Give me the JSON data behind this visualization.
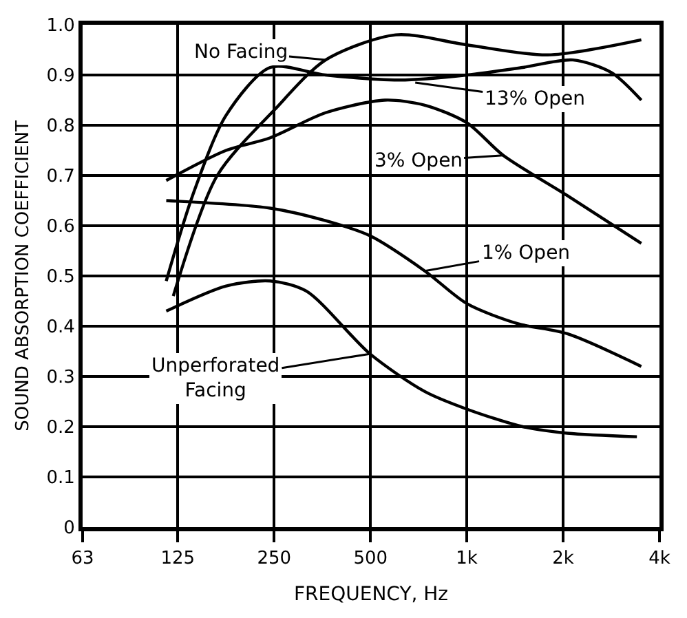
{
  "chart_data": {
    "type": "line",
    "xlabel": "FREQUENCY, Hz",
    "ylabel": "SOUND ABSORPTION COEFFICIENT",
    "log": "x",
    "grid": true,
    "marker": "none",
    "line_style": "solid",
    "xlim": [
      63,
      4000
    ],
    "xticks": [
      63,
      125,
      250,
      500,
      {
        "value": 1000,
        "label": "1k"
      },
      {
        "value": 2000,
        "label": "2k"
      },
      {
        "value": 4000,
        "label": "4k"
      }
    ],
    "ylim": [
      0,
      1
    ],
    "yticks": [
      0,
      0.1,
      0.2,
      0.3,
      0.4,
      0.5,
      0.6,
      0.7,
      0.8,
      0.9,
      {
        "value": 1,
        "label": "1.0"
      }
    ],
    "series": [
      {
        "color": "#000000",
        "x": [
          121,
          166,
          250,
          362,
          600,
          1000,
          1790,
          3510
        ],
        "values": [
          0.46,
          0.7,
          0.83,
          0.93,
          0.98,
          0.96,
          0.94,
          0.97
        ]
      },
      {
        "color": "#000000",
        "x": [
          115,
          139,
          177,
          243,
          362,
          617,
          1000,
          1495,
          2145,
          2830,
          3510
        ],
        "values": [
          0.49,
          0.66,
          0.82,
          0.915,
          0.9,
          0.89,
          0.9,
          0.915,
          0.93,
          0.905,
          0.85
        ]
      },
      {
        "color": "#000000",
        "x": [
          115,
          177,
          243,
          362,
          554,
          739,
          1000,
          1300,
          2060,
          3510
        ],
        "values": [
          0.69,
          0.75,
          0.775,
          0.825,
          0.85,
          0.84,
          0.805,
          0.74,
          0.66,
          0.565
        ]
      },
      {
        "color": "#000000",
        "x": [
          115,
          243,
          362,
          498,
          739,
          1000,
          1445,
          2060,
          3510
        ],
        "values": [
          0.65,
          0.635,
          0.61,
          0.58,
          0.51,
          0.445,
          0.405,
          0.385,
          0.32
        ]
      },
      {
        "color": "#000000",
        "x": [
          115,
          177,
          243,
          315,
          498,
          739,
          1000,
          1495,
          2060,
          3400
        ],
        "values": [
          0.43,
          0.48,
          0.49,
          0.47,
          0.345,
          0.27,
          0.235,
          0.2,
          0.187,
          0.18
        ]
      }
    ],
    "annotations": [
      {
        "text": "No Facing",
        "x": 362,
        "y": 0.93
      },
      {
        "text": "13% Open",
        "x": 690,
        "y": 0.885
      },
      {
        "text": "3% Open",
        "x": 1300,
        "y": 0.74
      },
      {
        "text": "1% Open",
        "x": 739,
        "y": 0.51
      },
      {
        "text": "Unperforated\nFacing",
        "x": 498,
        "y": 0.345
      }
    ]
  }
}
